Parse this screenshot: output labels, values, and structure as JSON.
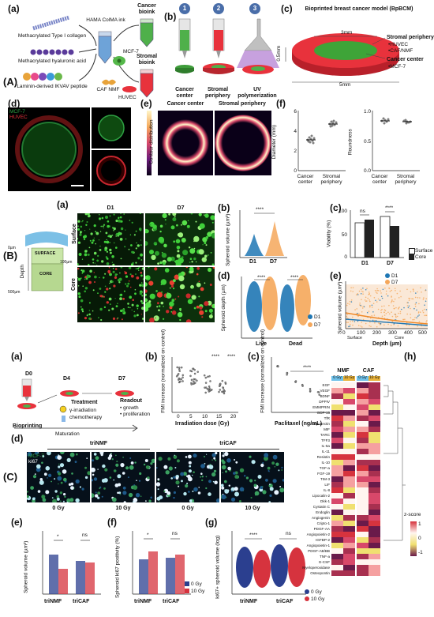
{
  "section_A": {
    "label": "(A)",
    "a": {
      "label": "(a)",
      "items": [
        "Methacrylated Type I collagen",
        "Methacrylated hyaluronic acid",
        "Laminin-derived IKVAV peptide"
      ],
      "ink": "HAMA ColMA ink",
      "cells": [
        "MCF-7",
        "CAF NMF",
        "HUVEC"
      ],
      "bioinks": [
        "Cancer bioink",
        "Stromal bioink"
      ]
    },
    "b": {
      "label": "(b)",
      "steps": [
        {
          "num": "1",
          "text": "Cancer center"
        },
        {
          "num": "2",
          "text": "Stromal periphery"
        },
        {
          "num": "3",
          "text": "UV polymerization"
        }
      ]
    },
    "c": {
      "label": "(c)",
      "title": "Bioprinted breast cancer model (BpBCM)",
      "dim_inner": "3mm",
      "dim_outer": "5mm",
      "dim_height": "0.5mm",
      "stromal_title": "Stromal periphery",
      "stromal_items": [
        "•HUVEC",
        "•CAF/NMF"
      ],
      "cancer_title": "Cancer center",
      "cancer_items": [
        "•MCF-7"
      ]
    },
    "d": {
      "label": "(d)",
      "channels": [
        "MCF-7",
        "HUVEC"
      ]
    },
    "e": {
      "label": "(e)",
      "titles": [
        "Cancer center",
        "Stromal periphery"
      ],
      "colorbar_label": "Contour distribution"
    },
    "f": {
      "label": "(f)",
      "charts": [
        {
          "ylabel": "Diameter (mm)",
          "ticks": [
            "0",
            "2",
            "4",
            "6"
          ],
          "categories": [
            "Cancer center",
            "Stromal periphery"
          ]
        },
        {
          "ylabel": "Roundness",
          "ticks": [
            "0.0",
            "0.5",
            "1.0"
          ],
          "categories": [
            "Cancer center",
            "Stromal periphery"
          ]
        }
      ]
    }
  },
  "section_B": {
    "label": "(B)",
    "a": {
      "label": "(a)",
      "cols": [
        "D1",
        "D7"
      ],
      "rows": [
        "Surface",
        "Core"
      ],
      "depth_label": "Depth",
      "surface": "SURFACE",
      "core": "CORE",
      "depth_ticks": [
        "0µm",
        "100µm",
        "500µm"
      ]
    },
    "b": {
      "label": "(b)",
      "ylabel": "Spheroid volume (µm³)",
      "sig": "****",
      "categories": [
        "D1",
        "D7"
      ]
    },
    "c": {
      "label": "(c)",
      "ylabel": "Viability (%)",
      "ticks": [
        "0",
        "50",
        "100"
      ],
      "categories": [
        "D1",
        "D7"
      ],
      "sig": [
        "ns",
        "****"
      ],
      "legend": [
        "Surface",
        "Core"
      ]
    },
    "d": {
      "label": "(d)",
      "ylabel": "Spheroid depth (µm)",
      "categories": [
        "Live",
        "Dead"
      ],
      "sig": [
        "****",
        "****"
      ],
      "legend": [
        "D1",
        "D7"
      ]
    },
    "e": {
      "label": "(e)",
      "ylabel": "Spheroid volume (µm³)",
      "xlabel": "Depth (µm)",
      "ticks": [
        "0",
        "100",
        "200",
        "300",
        "400",
        "500"
      ],
      "regions": [
        "Surface",
        "Core"
      ],
      "legend": [
        "D1",
        "D7"
      ]
    }
  },
  "section_C": {
    "label": "(C)",
    "a": {
      "label": "(a)",
      "days": [
        "D0",
        "D4",
        "D7"
      ],
      "bioprint": "Bioprinting",
      "treatment": "Treatment",
      "treat_items": [
        "γ-irradiation",
        "chemotherapy"
      ],
      "readout": "Readout",
      "readout_items": [
        "• growth",
        "• proliferation"
      ],
      "maturation": "Maturation"
    },
    "b": {
      "label": "(b)",
      "ylabel": "FMI increase (normalized on control)",
      "xlabel": "Irradiation dose (Gy)",
      "xticks": [
        "0",
        "5",
        "10",
        "15",
        "20"
      ],
      "sig": [
        "****",
        "****"
      ]
    },
    "c": {
      "label": "(c)",
      "ylabel": "FMI increase (normalized on control)",
      "xlabel": "Paclitaxel (ng/mL)",
      "sig": "****"
    },
    "d": {
      "label": "(d)",
      "groups": [
        "triNMF",
        "triCAF"
      ],
      "doses": [
        "0 Gy",
        "10 Gy",
        "0 Gy",
        "10 Gy"
      ],
      "channels": [
        "MCF-7",
        "ki67"
      ]
    },
    "e": {
      "label": "(e)",
      "ylabel": "Spheroid volume (µm³)",
      "categories": [
        "triNMF",
        "triCAF"
      ],
      "sig": [
        "*",
        "ns"
      ]
    },
    "f": {
      "label": "(f)",
      "ylabel": "Spheroid ki67 positivity (%)",
      "categories": [
        "triNMF",
        "triCAF"
      ],
      "sig": [
        "*",
        "ns"
      ],
      "legend": [
        "0 Gy",
        "10 Gy"
      ]
    },
    "g": {
      "label": "(g)",
      "ylabel": "ki67+ spheroid volume (log)",
      "categories": [
        "triNMF",
        "triCAF"
      ],
      "sig": [
        "****",
        "ns"
      ],
      "legend": [
        "0 Gy",
        "10 Gy"
      ]
    },
    "h": {
      "label": "(h)",
      "groups": [
        "NMF",
        "CAF"
      ],
      "cols": [
        "0 Gy",
        "10 Gy",
        "0 Gy",
        "10 Gy"
      ],
      "rows": [
        "EGF",
        "VEGF",
        "BDNF",
        "DPPIV",
        "EMMPRIN",
        "GDF-15",
        "TfR",
        "Adiponectin",
        "MIF",
        "TARC",
        "TFF3",
        "IL-5a",
        "IL-11",
        "Resistin",
        "IL-10",
        "TGF-a",
        "FGF-19",
        "TIM-3",
        "LIF",
        "IL-8",
        "Lipocalin-2",
        "Dkk-1",
        "Cystatin C",
        "Endoglin",
        "Angiogenin",
        "Cripto-1",
        "PDGF-AA",
        "Angiopoietin-2",
        "IGFBP-2",
        "Angiopoietin-1",
        "PDGF-AB/BB",
        "TNF-a",
        "G-CSF",
        "Myeloperoxidase",
        "Osteopontin"
      ],
      "colorbar_label": "z-score",
      "colorbar_ticks": [
        "1",
        "0",
        "-1"
      ]
    }
  },
  "colors": {
    "green": "#2ea043",
    "red": "#e8323c",
    "blue_dot": "#1f77b4",
    "orange_dot": "#f5a75a",
    "navy": "#2b3f8f",
    "crimson": "#d6333e"
  }
}
